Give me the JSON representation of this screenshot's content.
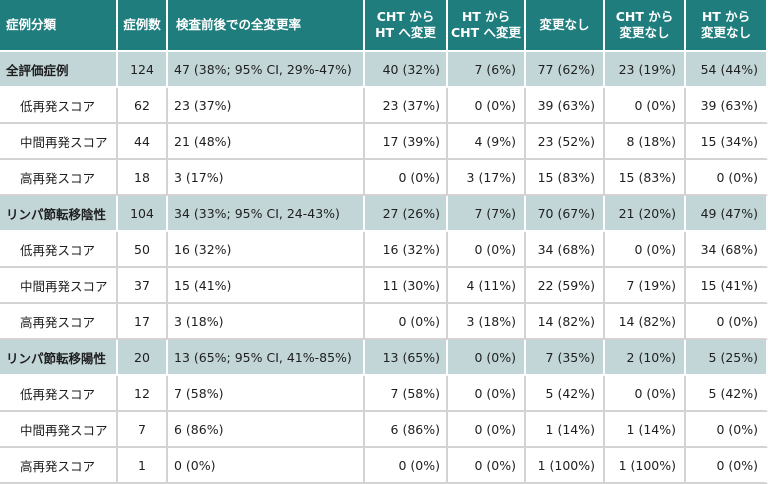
{
  "headers": [
    "症例分類",
    "症例数",
    "検査前後での全変更率",
    "CHT から\nHT へ変更",
    "HT から\nCHT へ変更",
    "変更なし",
    "CHT から\n変更なし",
    "HT から\n変更なし"
  ],
  "rows": [
    {
      "type": "group",
      "cells": [
        "全評価症例",
        "124",
        "47 (38%; 95% CI, 29%-47%)",
        "40 (32%)",
        "7 (6%)",
        "77 (62%)",
        "23 (19%)",
        "54 (44%)"
      ]
    },
    {
      "type": "sub",
      "cells": [
        "低再発スコア",
        "62",
        "23 (37%)",
        "23 (37%)",
        "0 (0%)",
        "39 (63%)",
        "0 (0%)",
        "39 (63%)"
      ]
    },
    {
      "type": "sub",
      "cells": [
        "中間再発スコア",
        "44",
        "21 (48%)",
        "17 (39%)",
        "4 (9%)",
        "23 (52%)",
        "8 (18%)",
        "15 (34%)"
      ]
    },
    {
      "type": "sub",
      "cells": [
        "高再発スコア",
        "18",
        "3 (17%)",
        "0 (0%)",
        "3 (17%)",
        "15 (83%)",
        "15 (83%)",
        "0 (0%)"
      ]
    },
    {
      "type": "group",
      "cells": [
        "リンパ節転移陰性",
        "104",
        "34 (33%; 95% CI, 24-43%)",
        "27 (26%)",
        "7 (7%)",
        "70 (67%)",
        "21 (20%)",
        "49 (47%)"
      ]
    },
    {
      "type": "sub",
      "cells": [
        "低再発スコア",
        "50",
        "16 (32%)",
        "16 (32%)",
        "0 (0%)",
        "34 (68%)",
        "0 (0%)",
        "34 (68%)"
      ]
    },
    {
      "type": "sub",
      "cells": [
        "中間再発スコア",
        "37",
        "15 (41%)",
        "11 (30%)",
        "4 (11%)",
        "22 (59%)",
        "7 (19%)",
        "15 (41%)"
      ]
    },
    {
      "type": "sub",
      "cells": [
        "高再発スコア",
        "17",
        "3 (18%)",
        "0 (0%)",
        "3 (18%)",
        "14 (82%)",
        "14 (82%)",
        "0 (0%)"
      ]
    },
    {
      "type": "group",
      "cells": [
        "リンパ節転移陽性",
        "20",
        "13 (65%; 95% CI, 41%-85%)",
        "13 (65%)",
        "0 (0%)",
        "7 (35%)",
        "2 (10%)",
        "5 (25%)"
      ]
    },
    {
      "type": "sub",
      "cells": [
        "低再発スコア",
        "12",
        "7 (58%)",
        "7 (58%)",
        "0 (0%)",
        "5 (42%)",
        "0 (0%)",
        "5 (42%)"
      ]
    },
    {
      "type": "sub",
      "cells": [
        "中間再発スコア",
        "7",
        "6 (86%)",
        "6 (86%)",
        "0 (0%)",
        "1 (14%)",
        "1 (14%)",
        "0 (0%)"
      ]
    },
    {
      "type": "sub",
      "cells": [
        "高再発スコア",
        "1",
        "0 (0%)",
        "0 (0%)",
        "0 (0%)",
        "1 (100%)",
        "1 (100%)",
        "0 (0%)"
      ]
    }
  ],
  "colors": {
    "header_bg": "#1f7d7e",
    "header_text": "#ffffff",
    "group_row_bg": "#c2d6d8",
    "sub_row_bg": "#ffffff"
  }
}
